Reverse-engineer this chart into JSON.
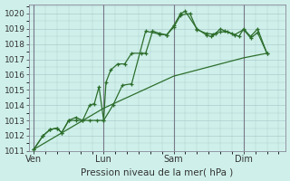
{
  "bg_color": "#cff0ea",
  "grid_color": "#aacccc",
  "line_color": "#2d6e2d",
  "marker_color": "#2d6e2d",
  "xlabel": "Pression niveau de la mer( hPa )",
  "ylim": [
    1011,
    1020.6
  ],
  "yticks": [
    1011,
    1012,
    1013,
    1014,
    1015,
    1016,
    1017,
    1018,
    1019,
    1020
  ],
  "xtick_labels": [
    "Ven",
    "Lun",
    "Sam",
    "Dim"
  ],
  "xtick_positions": [
    0,
    30,
    60,
    90
  ],
  "xlim": [
    -2,
    108
  ],
  "num_x_gridlines": 18,
  "vline_positions": [
    0,
    30,
    60,
    90
  ],
  "vline_color": "#777788",
  "series1": [
    [
      0,
      1011.1
    ],
    [
      4,
      1012.0
    ],
    [
      7,
      1012.4
    ],
    [
      10,
      1012.5
    ],
    [
      12,
      1012.2
    ],
    [
      15,
      1013.0
    ],
    [
      18,
      1013.0
    ],
    [
      21,
      1013.0
    ],
    [
      24,
      1014.0
    ],
    [
      26,
      1014.1
    ],
    [
      28,
      1015.2
    ],
    [
      30,
      1013.0
    ],
    [
      31,
      1015.5
    ],
    [
      33,
      1016.3
    ],
    [
      36,
      1016.7
    ],
    [
      39,
      1016.7
    ],
    [
      42,
      1017.4
    ],
    [
      46,
      1017.4
    ],
    [
      48,
      1017.4
    ],
    [
      51,
      1018.85
    ],
    [
      54,
      1018.7
    ],
    [
      57,
      1018.6
    ],
    [
      60,
      1019.2
    ],
    [
      63,
      1020.0
    ],
    [
      65,
      1020.15
    ],
    [
      70,
      1019.0
    ],
    [
      74,
      1018.6
    ],
    [
      76,
      1018.5
    ],
    [
      78,
      1018.7
    ],
    [
      80,
      1019.0
    ],
    [
      82,
      1018.85
    ],
    [
      85,
      1018.7
    ],
    [
      88,
      1018.5
    ],
    [
      90,
      1019.0
    ],
    [
      93,
      1018.5
    ],
    [
      96,
      1019.0
    ],
    [
      100,
      1017.4
    ]
  ],
  "series2": [
    [
      0,
      1011.1
    ],
    [
      4,
      1012.0
    ],
    [
      7,
      1012.4
    ],
    [
      10,
      1012.5
    ],
    [
      12,
      1012.2
    ],
    [
      15,
      1013.0
    ],
    [
      18,
      1013.2
    ],
    [
      21,
      1013.0
    ],
    [
      24,
      1013.0
    ],
    [
      27,
      1013.0
    ],
    [
      30,
      1013.0
    ],
    [
      34,
      1014.0
    ],
    [
      38,
      1015.3
    ],
    [
      42,
      1015.4
    ],
    [
      48,
      1018.85
    ],
    [
      54,
      1018.65
    ],
    [
      57,
      1018.6
    ],
    [
      60,
      1019.1
    ],
    [
      63,
      1019.9
    ],
    [
      67,
      1020.0
    ],
    [
      70,
      1018.95
    ],
    [
      74,
      1018.7
    ],
    [
      77,
      1018.65
    ],
    [
      80,
      1018.8
    ],
    [
      83,
      1018.8
    ],
    [
      86,
      1018.6
    ],
    [
      90,
      1018.95
    ],
    [
      93,
      1018.4
    ],
    [
      96,
      1018.75
    ],
    [
      100,
      1017.4
    ]
  ],
  "series3": [
    [
      0,
      1011.1
    ],
    [
      30,
      1013.8
    ],
    [
      60,
      1015.9
    ],
    [
      90,
      1017.1
    ],
    [
      100,
      1017.4
    ]
  ]
}
